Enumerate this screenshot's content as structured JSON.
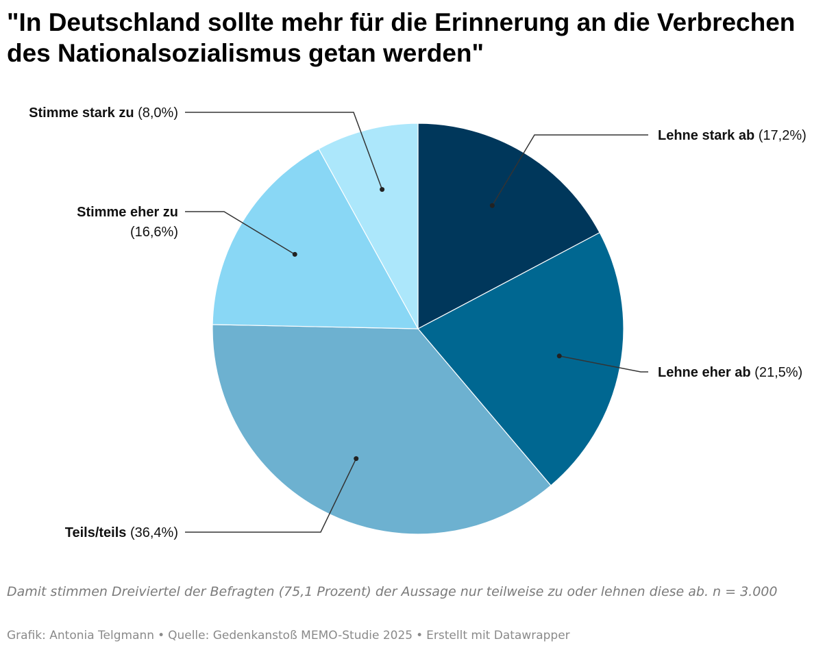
{
  "title": "\"In Deutschland sollte mehr für die Erinnerung an die Verbrechen des Nationalsozialismus getan werden\"",
  "notes": "Damit stimmen Dreiviertel der Befragten (75,1 Prozent) der Aussage nur teilweise zu oder lehnen diese ab. n = 3.000",
  "byline": {
    "credit": "Grafik: Antonia Telgmann",
    "source": "Quelle: Gedenkanstoß MEMO-Studie 2025",
    "tool": "Erstellt mit Datawrapper",
    "separator": "•"
  },
  "chart_data": {
    "type": "pie",
    "title": "\"In Deutschland sollte mehr für die Erinnerung an die Verbrechen des Nationalsozialismus getan werden\"",
    "slices": [
      {
        "label": "Lehne stark ab",
        "value": 17.2,
        "value_label": "(17,2%)",
        "color": "#00375b"
      },
      {
        "label": "Lehne eher ab",
        "value": 21.5,
        "value_label": "(21,5%)",
        "color": "#006791"
      },
      {
        "label": "Teils/teils",
        "value": 36.4,
        "value_label": "(36,4%)",
        "color": "#6db1d0"
      },
      {
        "label": "Stimme eher zu",
        "value": 16.6,
        "value_label": "(16,6%)",
        "color": "#89d7f5"
      },
      {
        "label": "Stimme stark zu",
        "value": 8.0,
        "value_label": "(8,0%)",
        "color": "#ace7fb"
      }
    ]
  }
}
